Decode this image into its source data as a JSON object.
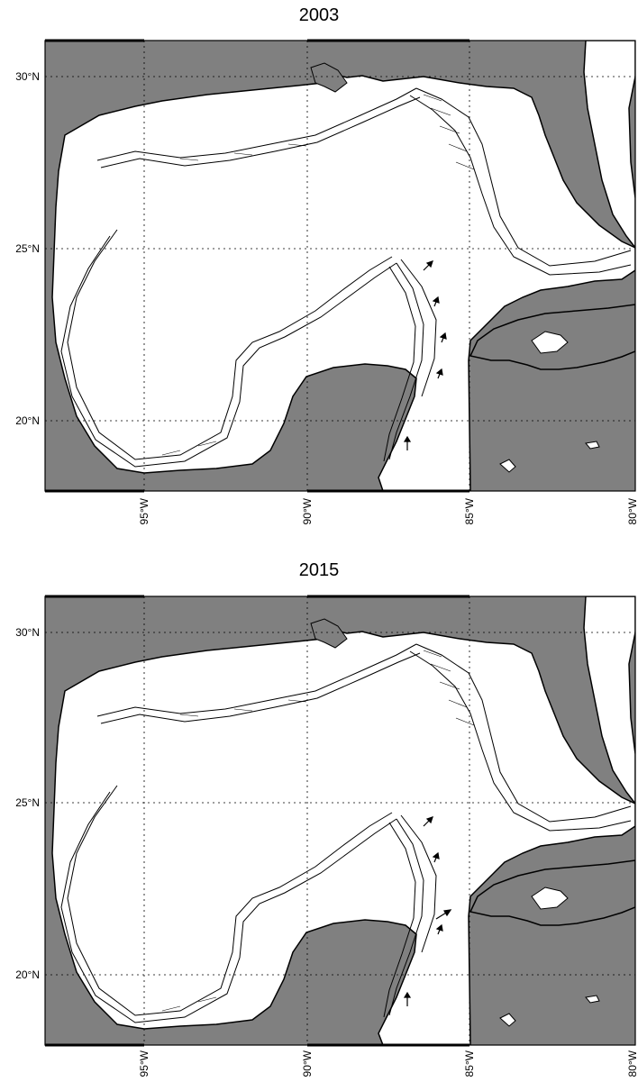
{
  "panels": [
    {
      "title": "2003",
      "lat_labels": [
        "30°N",
        "25°N",
        "20°N"
      ],
      "lon_labels": [
        "95°W",
        "90°W",
        "85°W",
        "80°W"
      ]
    },
    {
      "title": "2015",
      "lat_labels": [
        "30°N",
        "25°N",
        "20°N"
      ],
      "lon_labels": [
        "95°W",
        "90°W",
        "85°W",
        "80°W"
      ]
    }
  ],
  "colors": {
    "land": "#808080",
    "water": "#ffffff",
    "line": "#000000"
  },
  "map_extent": {
    "lon": [
      -98,
      -80
    ],
    "lat": [
      18,
      31
    ]
  }
}
